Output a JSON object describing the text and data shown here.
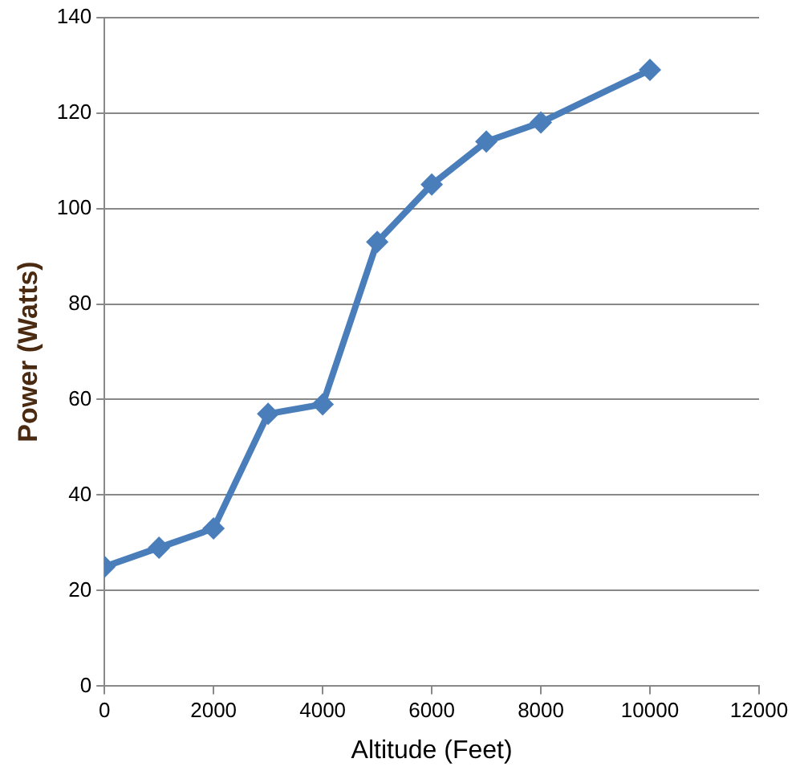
{
  "chart_data": {
    "type": "line",
    "xlabel": "Altitude (Feet)",
    "ylabel": "Power (Watts)",
    "x": [
      0,
      1000,
      2000,
      3000,
      4000,
      5000,
      6000,
      7000,
      8000,
      10000
    ],
    "series": [
      {
        "color": "#4a7ebb",
        "values": [
          25,
          29,
          33,
          57,
          59,
          93,
          105,
          114,
          118,
          129
        ]
      }
    ],
    "xlim": [
      0,
      12000
    ],
    "xticks": [
      0,
      2000,
      4000,
      6000,
      8000,
      10000,
      12000
    ],
    "ylim": [
      0,
      140
    ],
    "yticks": [
      0,
      20,
      40,
      60,
      80,
      100,
      120,
      140
    ],
    "grid": "y",
    "marker": "diamond",
    "line_style": "solid",
    "legend": false
  }
}
